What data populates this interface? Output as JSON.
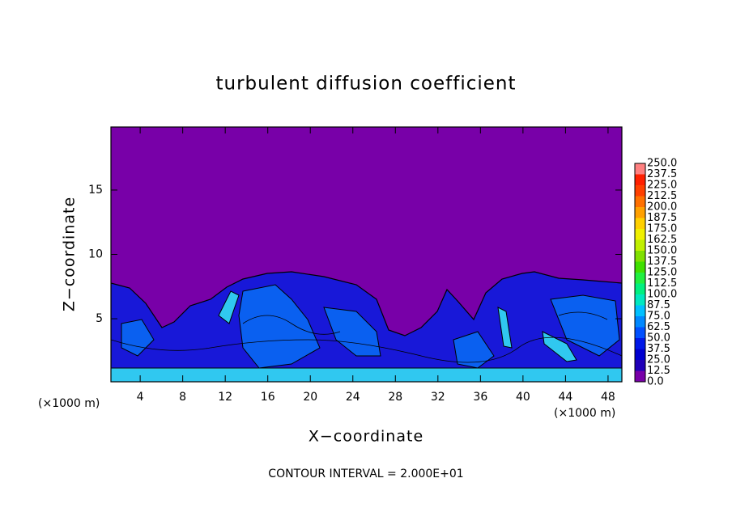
{
  "chart_data": {
    "type": "contour",
    "title": "turbulent diffusion coefficient",
    "x_label": "X−coordinate",
    "y_label": "Z−coordinate",
    "x_unit_label": "(×1000 m)",
    "y_unit_label": "(×1000 m)",
    "footnote": "CONTOUR INTERVAL = 2.000E+01",
    "xlim": [
      1.25,
      49.3
    ],
    "ylim": [
      0.1,
      19.9
    ],
    "xticks": [
      4,
      8,
      12,
      16,
      20,
      24,
      28,
      32,
      36,
      40,
      44,
      48
    ],
    "yticks": [
      5,
      10,
      15
    ],
    "colorbar_levels": [
      {
        "value": 0,
        "label": "0.0"
      },
      {
        "value": 12.5,
        "label": "12.5"
      },
      {
        "value": 25,
        "label": "25.0"
      },
      {
        "value": 37.5,
        "label": "37.5"
      },
      {
        "value": 50,
        "label": "50.0"
      },
      {
        "value": 62.5,
        "label": "62.5"
      },
      {
        "value": 75,
        "label": "75.0"
      },
      {
        "value": 87.5,
        "label": "87.5"
      },
      {
        "value": 100,
        "label": "100.0"
      },
      {
        "value": 112.5,
        "label": "112.5"
      },
      {
        "value": 125,
        "label": "125.0"
      },
      {
        "value": 137.5,
        "label": "137.5"
      },
      {
        "value": 150,
        "label": "150.0"
      },
      {
        "value": 162.5,
        "label": "162.5"
      },
      {
        "value": 175,
        "label": "175.0"
      },
      {
        "value": 187.5,
        "label": "187.5"
      },
      {
        "value": 200,
        "label": "200.0"
      },
      {
        "value": 212.5,
        "label": "212.5"
      },
      {
        "value": 225,
        "label": "225.0"
      },
      {
        "value": 237.5,
        "label": "237.5"
      },
      {
        "value": 250,
        "label": "250.0"
      }
    ],
    "colorbar_colors": [
      "#7800a8",
      "#2000b8",
      "#0000d0",
      "#0018e8",
      "#0050ff",
      "#0088ff",
      "#00c0ff",
      "#00e8c0",
      "#00f080",
      "#20f040",
      "#40e000",
      "#80e000",
      "#c0f000",
      "#f0f000",
      "#ffd000",
      "#ffa000",
      "#ff7000",
      "#ff4000",
      "#ff2000",
      "#ff8080"
    ]
  }
}
